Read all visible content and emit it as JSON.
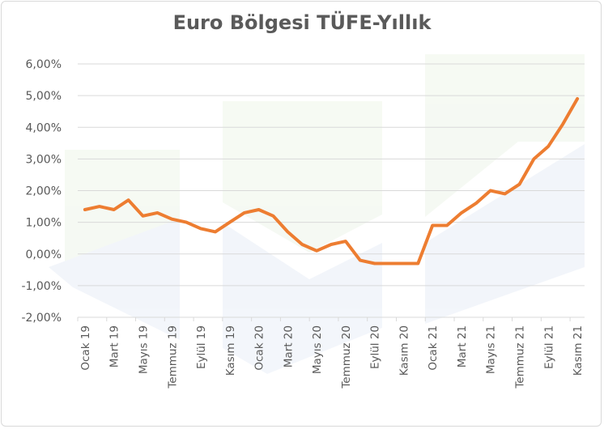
{
  "chart_data": {
    "type": "line",
    "title": "Euro Bölgesi TÜFE-Yıllık",
    "xlabel": "",
    "ylabel": "",
    "ylim": [
      -2,
      6
    ],
    "ytick_labels": [
      "-2,00%",
      "-1,00%",
      "0,00%",
      "1,00%",
      "2,00%",
      "3,00%",
      "4,00%",
      "5,00%",
      "6,00%"
    ],
    "ytick_values": [
      -2,
      -1,
      0,
      1,
      2,
      3,
      4,
      5,
      6
    ],
    "x_tick_labels": [
      "Ocak 19",
      "Mart 19",
      "Mayıs 19",
      "Temmuz 19",
      "Eylül 19",
      "Kasım 19",
      "Ocak 20",
      "Mart 20",
      "Mayıs 20",
      "Temmuz 20",
      "Eylül 20",
      "Kasım 20",
      "Ocak 21",
      "Mart 21",
      "Mayıs 21",
      "Temmuz 21",
      "Eylül 21",
      "Kasım 21"
    ],
    "x": [
      "Ocak 19",
      "Şubat 19",
      "Mart 19",
      "Nisan 19",
      "Mayıs 19",
      "Haziran 19",
      "Temmuz 19",
      "Ağustos 19",
      "Eylül 19",
      "Ekim 19",
      "Kasım 19",
      "Aralık 19",
      "Ocak 20",
      "Şubat 20",
      "Mart 20",
      "Nisan 20",
      "Mayıs 20",
      "Haziran 20",
      "Temmuz 20",
      "Ağustos 20",
      "Eylül 20",
      "Ekim 20",
      "Kasım 20",
      "Aralık 20",
      "Ocak 21",
      "Şubat 21",
      "Mart 21",
      "Nisan 21",
      "Mayıs 21",
      "Haziran 21",
      "Temmuz 21",
      "Ağustos 21",
      "Eylül 21",
      "Ekim 21",
      "Kasım 21"
    ],
    "series": [
      {
        "values": [
          1.4,
          1.5,
          1.4,
          1.7,
          1.2,
          1.3,
          1.1,
          1.0,
          0.8,
          0.7,
          1.0,
          1.3,
          1.4,
          1.2,
          0.7,
          0.3,
          0.1,
          0.3,
          0.4,
          -0.2,
          -0.3,
          -0.3,
          -0.3,
          -0.3,
          0.9,
          0.9,
          1.3,
          1.6,
          2.0,
          1.9,
          2.2,
          3.0,
          3.4,
          4.1,
          4.9
        ],
        "color": "#ed7d31"
      }
    ],
    "grid": true,
    "legend": "none"
  }
}
